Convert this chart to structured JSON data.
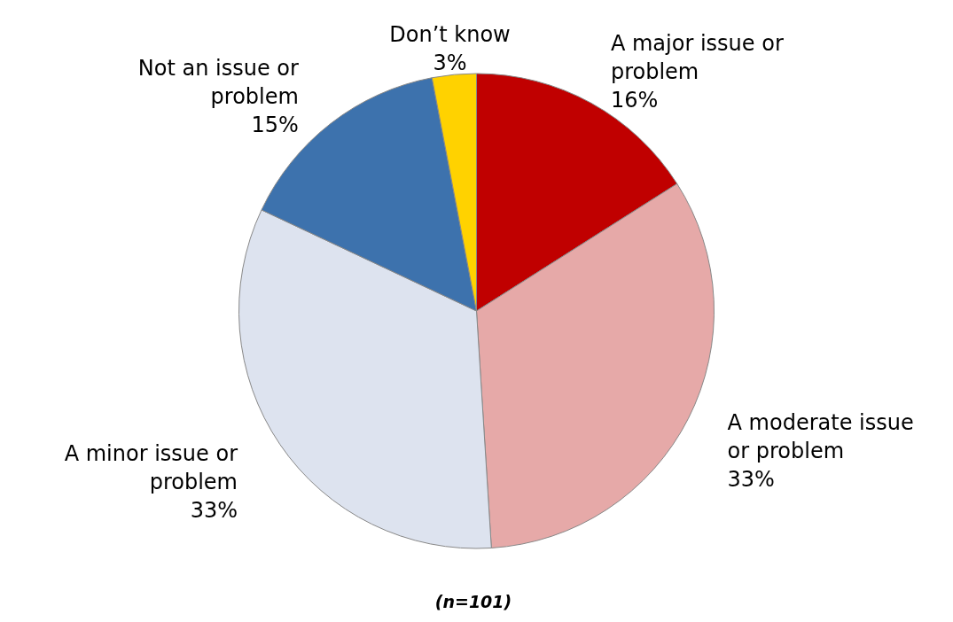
{
  "chart_data": {
    "type": "pie",
    "categories": [
      "A major issue or problem",
      "A moderate issue or problem",
      "A minor issue or problem",
      "Not an issue or problem",
      "Don’t know"
    ],
    "values": [
      16,
      33,
      33,
      15,
      3
    ],
    "value_labels": [
      "16%",
      "33%",
      "33%",
      "15%",
      "3%"
    ],
    "colors": [
      "#c00000",
      "#e6a9a8",
      "#dde3ef",
      "#3d72ad",
      "#ffd200"
    ],
    "annotations": [
      "(n=101)"
    ]
  }
}
